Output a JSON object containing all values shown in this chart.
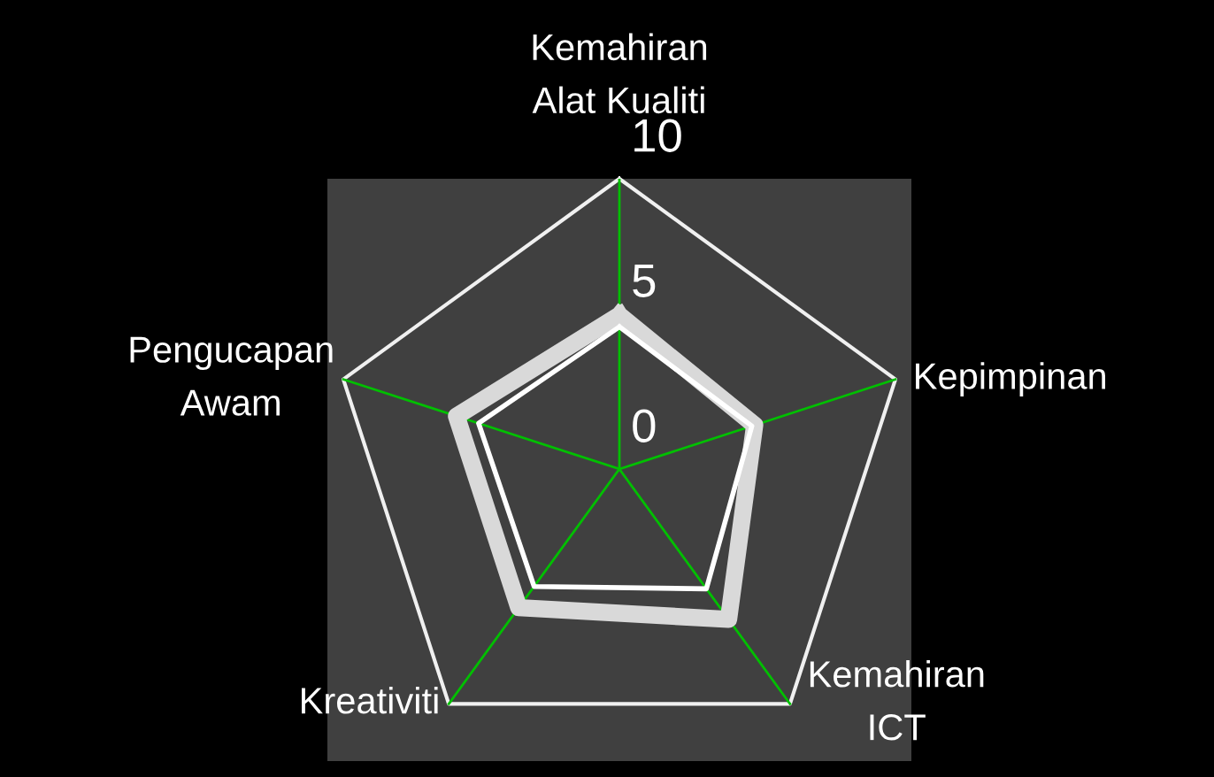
{
  "chart_data": {
    "type": "radar",
    "categories": [
      "Kemahiran\nAlat Kualiti",
      "Kepimpinan",
      "Kemahiran\nICT",
      "Kreativiti",
      "Pengucapan\nAwam"
    ],
    "series": [
      {
        "color": "#d9d9d9",
        "values": [
          5.3,
          4.9,
          6.4,
          5.9,
          5.9
        ]
      },
      {
        "color": "#ffffff",
        "values": [
          4.9,
          4.8,
          5.1,
          5.0,
          5.1
        ]
      }
    ],
    "ylim": [
      0,
      10
    ],
    "yticks": [
      0,
      5,
      10
    ],
    "grid": true,
    "legend": false
  }
}
